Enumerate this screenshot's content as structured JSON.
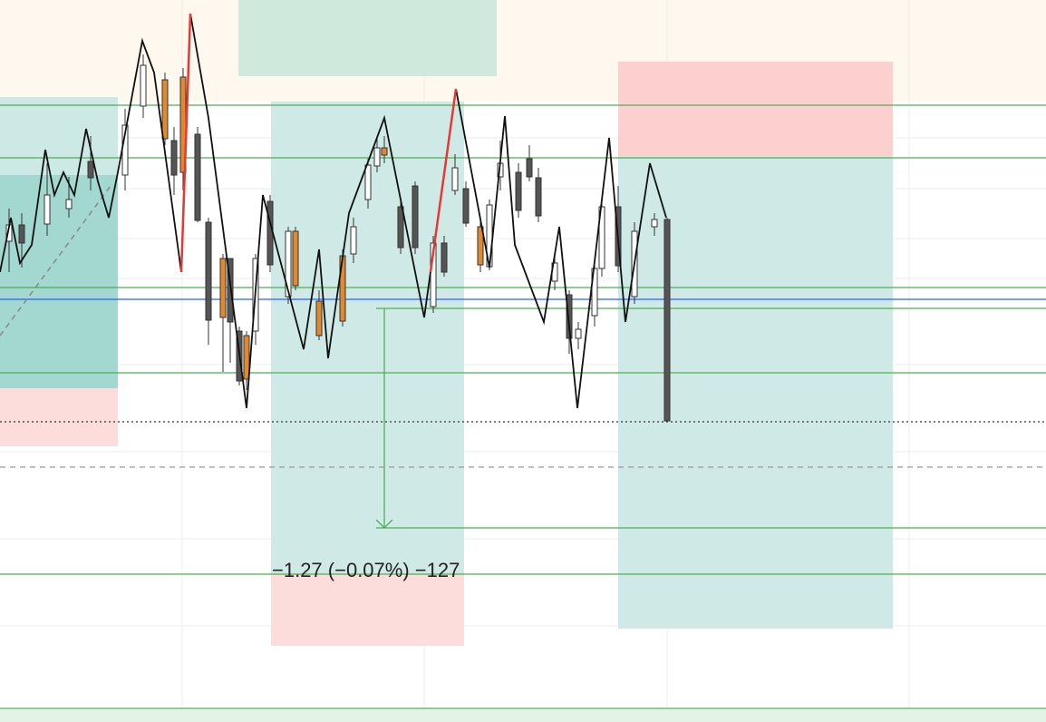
{
  "measure": {
    "label": "−1.27 (−0.07%) −127"
  }
}
